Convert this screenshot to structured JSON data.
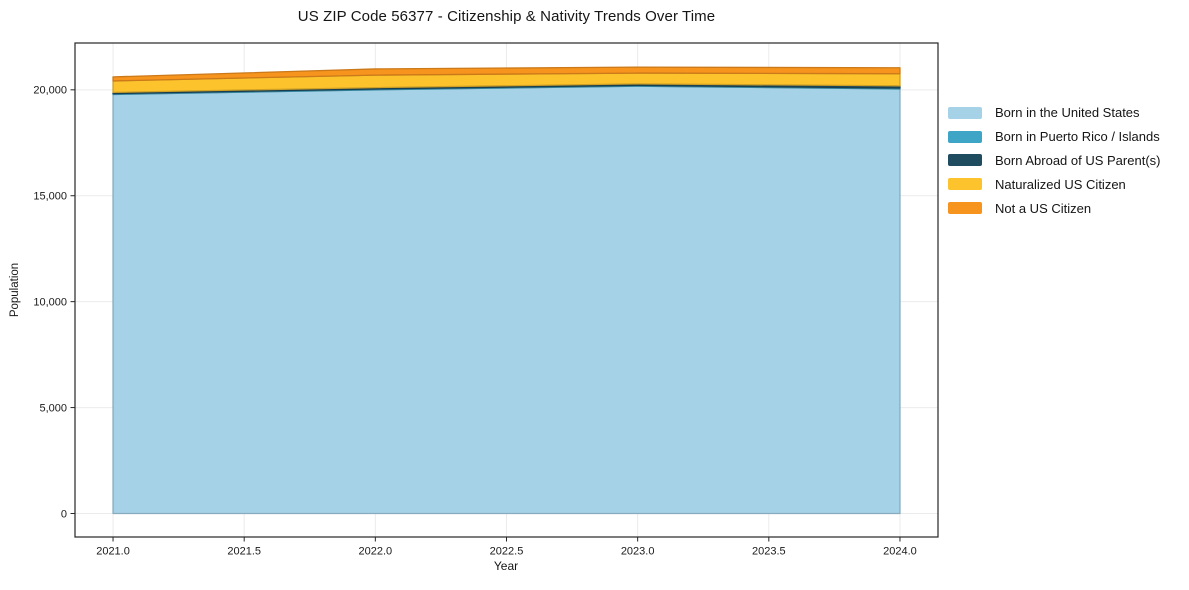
{
  "chart_data": {
    "type": "area",
    "stacked": true,
    "title": "US ZIP Code 56377 - Citizenship & Nativity Trends Over Time",
    "xlabel": "Year",
    "ylabel": "Population",
    "x": [
      2021,
      2022,
      2023,
      2024
    ],
    "series": [
      {
        "name": "Born in the United States",
        "color": "#a6d2e7",
        "values": [
          19780,
          20000,
          20170,
          20040
        ]
      },
      {
        "name": "Born in Puerto Rico / Islands",
        "color": "#3fa5c6",
        "values": [
          40,
          40,
          40,
          45
        ]
      },
      {
        "name": "Born Abroad of US Parent(s)",
        "color": "#1f4c5f",
        "values": [
          60,
          65,
          70,
          105
        ]
      },
      {
        "name": "Naturalized US Citizen",
        "color": "#fcc32d",
        "values": [
          540,
          590,
          510,
          570
        ]
      },
      {
        "name": "Not a US Citizen",
        "color": "#f7941e",
        "values": [
          190,
          290,
          280,
          280
        ]
      }
    ],
    "xlim": [
      2020.855,
      2024.145
    ],
    "ylim": [
      -1110,
      22210
    ],
    "x_ticks": [
      {
        "v": 2021.0,
        "label": "2021.0"
      },
      {
        "v": 2021.5,
        "label": "2021.5"
      },
      {
        "v": 2022.0,
        "label": "2022.0"
      },
      {
        "v": 2022.5,
        "label": "2022.5"
      },
      {
        "v": 2023.0,
        "label": "2023.0"
      },
      {
        "v": 2023.5,
        "label": "2023.5"
      },
      {
        "v": 2024.0,
        "label": "2024.0"
      }
    ],
    "y_ticks": [
      {
        "v": 0,
        "label": "0"
      },
      {
        "v": 5000,
        "label": "5,000"
      },
      {
        "v": 10000,
        "label": "10,000"
      },
      {
        "v": 15000,
        "label": "15,000"
      },
      {
        "v": 20000,
        "label": "20,000"
      }
    ],
    "grid": true,
    "legend_position": "right"
  }
}
